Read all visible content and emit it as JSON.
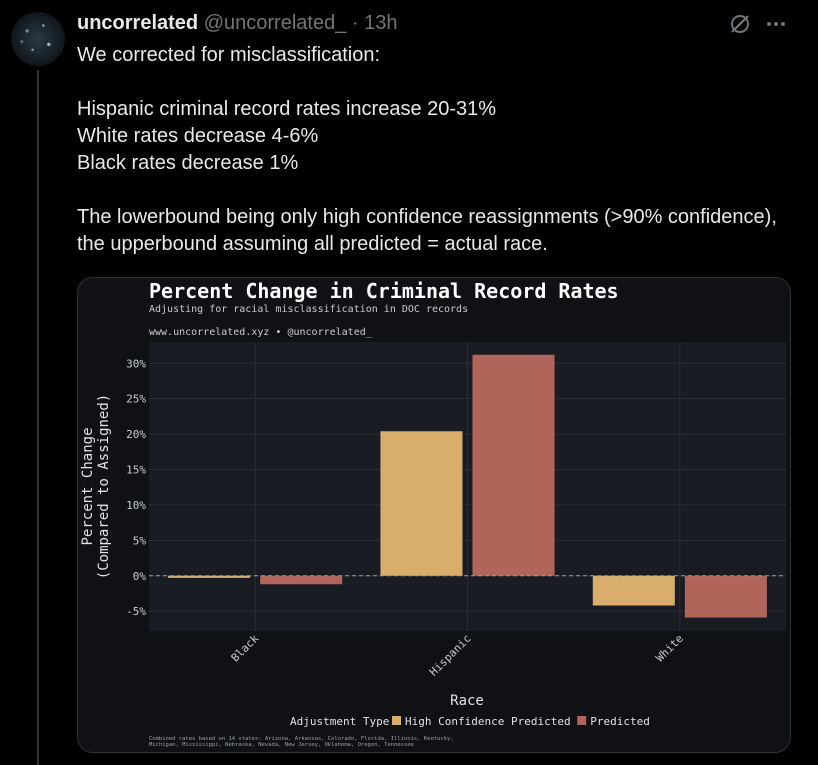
{
  "tweet": {
    "display_name": "uncorrelated",
    "handle": "@uncorrelated_",
    "separator": "·",
    "time": "13h",
    "text": "We corrected for misclassification:\n\nHispanic criminal record rates increase 20-31%\nWhite rates decrease 4-6%\nBlack rates decrease 1%\n\nThe lowerbound being only high confidence reassignments (>90% confidence), the upperbound assuming all predicted = actual race."
  },
  "icons": {
    "grok": "grok-icon",
    "more": "more-icon"
  },
  "chart_data": {
    "type": "bar",
    "title": "Percent Change in Criminal Record Rates",
    "subtitle": "Adjusting for racial misclassification in DOC records",
    "caption_top": "www.uncorrelated.xyz • @uncorrelated_",
    "categories": [
      "Black",
      "Hispanic",
      "White"
    ],
    "series": [
      {
        "name": "High Confidence Predicted",
        "color": "#d9ad6c",
        "values": [
          -0.3,
          20.4,
          -4.2
        ]
      },
      {
        "name": "Predicted",
        "color": "#b0645a",
        "values": [
          -1.2,
          31.2,
          -5.9
        ]
      }
    ],
    "xlabel": "Race",
    "ylabel": "Percent Change\n(Compared to Assigned)",
    "y_ticks": [
      "-5%",
      "0%",
      "5%",
      "10%",
      "15%",
      "20%",
      "25%",
      "30%"
    ],
    "ylim": [
      -7.8,
      33
    ],
    "legend_title": "Adjustment Type",
    "legend_position": "bottom",
    "footnote_line1": "Combined rates based on 14 states: Arizona, Arkansas, Colorado, Florida, Illinois, Kentucky,",
    "footnote_line2": "Michigan, Mississippi, Nebraska, Nevada, New Jersey, Oklahoma, Oregon, Tennessee",
    "background": "#0f1115",
    "panel": "#191c22",
    "grid": "#2a2e36"
  }
}
